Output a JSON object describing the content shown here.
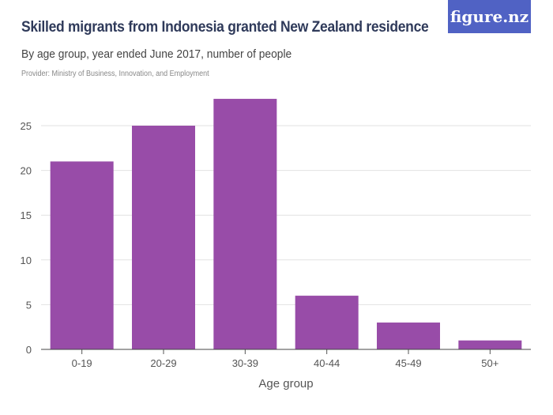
{
  "header": {
    "title": "Skilled migrants from Indonesia granted New Zealand residence",
    "subtitle": "By age group, year ended June 2017, number of people",
    "provider": "Provider: Ministry of Business, Innovation, and Employment",
    "logo": "figure.nz"
  },
  "colors": {
    "bar": "#984ca8",
    "logo_bg": "#5062c4",
    "grid": "#e2e2e2"
  },
  "chart_data": {
    "type": "bar",
    "title": "Skilled migrants from Indonesia granted New Zealand residence",
    "xlabel": "Age group",
    "ylabel": "",
    "categories": [
      "0-19",
      "20-29",
      "30-39",
      "40-44",
      "45-49",
      "50+"
    ],
    "values": [
      21,
      25,
      28,
      6,
      3,
      1
    ],
    "ylim": [
      0,
      28
    ],
    "yticks": [
      0,
      5,
      10,
      15,
      20,
      25
    ],
    "grid": true
  }
}
